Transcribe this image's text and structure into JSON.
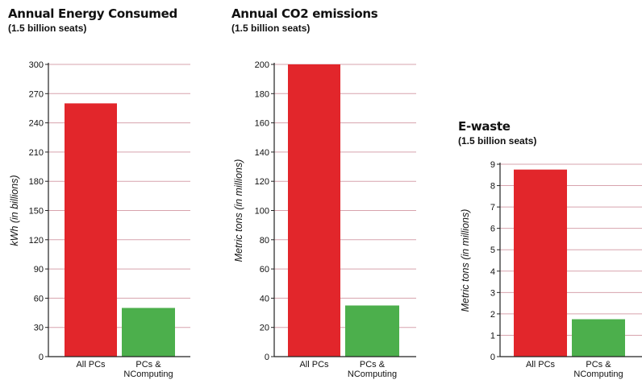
{
  "chart_data": [
    {
      "type": "bar",
      "title": "Annual Energy Consumed",
      "subtitle": "(1.5 billion seats)",
      "ylabel": "kWh (in billions)",
      "categories": [
        "All PCs",
        "PCs & NComputing"
      ],
      "category_lines": [
        [
          "All PCs"
        ],
        [
          "PCs &",
          "NComputing"
        ]
      ],
      "values": [
        260,
        50
      ],
      "colors": [
        "#e2262b",
        "#4caf4c"
      ],
      "ylim": [
        0,
        300
      ],
      "yticks": [
        0,
        30,
        60,
        90,
        120,
        150,
        180,
        210,
        240,
        270,
        300
      ],
      "grid": true
    },
    {
      "type": "bar",
      "title": "Annual CO2 emissions",
      "subtitle": "(1.5 billion seats)",
      "ylabel": "Metric tons (in millions)",
      "categories": [
        "All PCs",
        "PCs & NComputing"
      ],
      "category_lines": [
        [
          "All PCs"
        ],
        [
          "PCs &",
          "NComputing"
        ]
      ],
      "values": [
        200,
        35
      ],
      "colors": [
        "#e2262b",
        "#4caf4c"
      ],
      "ylim": [
        0,
        200
      ],
      "yticks": [
        0,
        20,
        40,
        60,
        80,
        100,
        120,
        140,
        160,
        180,
        200
      ],
      "grid": true
    },
    {
      "type": "bar",
      "title": "E-waste",
      "subtitle": "(1.5 billion seats)",
      "ylabel": "Metric tons (in millions)",
      "categories": [
        "All PCs",
        "PCs & NComputing"
      ],
      "category_lines": [
        [
          "All PCs"
        ],
        [
          "PCs &",
          "NComputing"
        ]
      ],
      "values": [
        8.75,
        1.75
      ],
      "colors": [
        "#e2262b",
        "#4caf4c"
      ],
      "ylim": [
        0,
        9
      ],
      "yticks": [
        0,
        1,
        2,
        3,
        4,
        5,
        6,
        7,
        8,
        9
      ],
      "grid": true
    }
  ]
}
